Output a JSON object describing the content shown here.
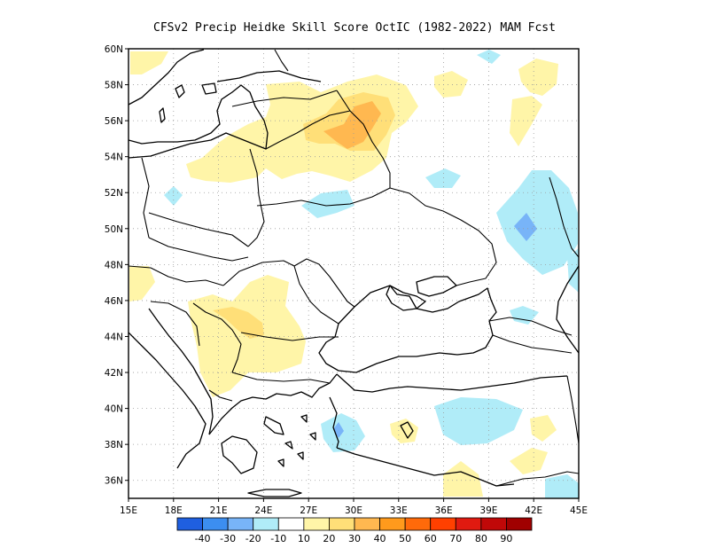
{
  "title": "CFSv2 Precip Heidke Skill Score OctIC (1982-2022) MAM Fcst",
  "map": {
    "lon_range": [
      15,
      45
    ],
    "lat_range": [
      35,
      60
    ],
    "lon_ticks": [
      {
        "value": 15,
        "label": "15E"
      },
      {
        "value": 18,
        "label": "18E"
      },
      {
        "value": 21,
        "label": "21E"
      },
      {
        "value": 24,
        "label": "24E"
      },
      {
        "value": 27,
        "label": "27E"
      },
      {
        "value": 30,
        "label": "30E"
      },
      {
        "value": 33,
        "label": "33E"
      },
      {
        "value": 36,
        "label": "36E"
      },
      {
        "value": 39,
        "label": "39E"
      },
      {
        "value": 42,
        "label": "42E"
      },
      {
        "value": 45,
        "label": "45E"
      }
    ],
    "lat_ticks": [
      {
        "value": 36,
        "label": "36N"
      },
      {
        "value": 38,
        "label": "38N"
      },
      {
        "value": 40,
        "label": "40N"
      },
      {
        "value": 42,
        "label": "42N"
      },
      {
        "value": 44,
        "label": "44N"
      },
      {
        "value": 46,
        "label": "46N"
      },
      {
        "value": 48,
        "label": "48N"
      },
      {
        "value": 50,
        "label": "50N"
      },
      {
        "value": 52,
        "label": "52N"
      },
      {
        "value": 54,
        "label": "54N"
      },
      {
        "value": 56,
        "label": "56N"
      },
      {
        "value": 58,
        "label": "58N"
      },
      {
        "value": 60,
        "label": "60N"
      }
    ],
    "gridlines": "dotted",
    "colorbar": {
      "colors": [
        "#1f5fe0",
        "#3c8ef0",
        "#78b4f8",
        "#b0ecf8",
        "#ffffff",
        "#fff5a8",
        "#ffdf78",
        "#ffb850",
        "#ff9a1c",
        "#ff6a0a",
        "#ff4000",
        "#e01a10",
        "#c00808",
        "#a00000"
      ],
      "labels": [
        "-40",
        "-30",
        "-20",
        "-10",
        "10",
        "20",
        "30",
        "40",
        "50",
        "60",
        "70",
        "80",
        "90"
      ]
    }
  }
}
